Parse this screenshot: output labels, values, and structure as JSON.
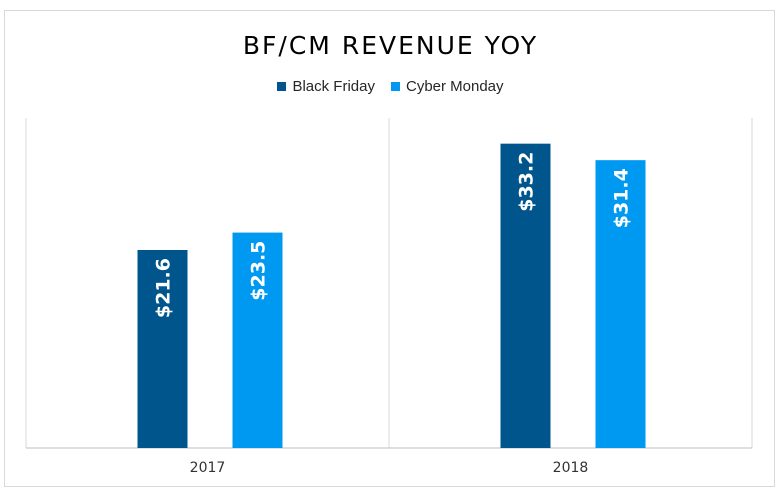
{
  "chart_data": {
    "type": "bar",
    "title": "BF/CM REVENUE YOY",
    "categories": [
      "2017",
      "2018"
    ],
    "series": [
      {
        "name": "Black Friday",
        "color": "#00558c",
        "values": [
          21.6,
          33.2
        ],
        "labels": [
          "$21.6",
          "$33.2"
        ]
      },
      {
        "name": "Cyber Monday",
        "color": "#0099f2",
        "values": [
          23.5,
          31.4
        ],
        "labels": [
          "$23.5",
          "$31.4"
        ]
      }
    ],
    "ylim": [
      0,
      36
    ],
    "grid": false,
    "legend_position": "top",
    "data_labels": "rotated-inside-top"
  }
}
